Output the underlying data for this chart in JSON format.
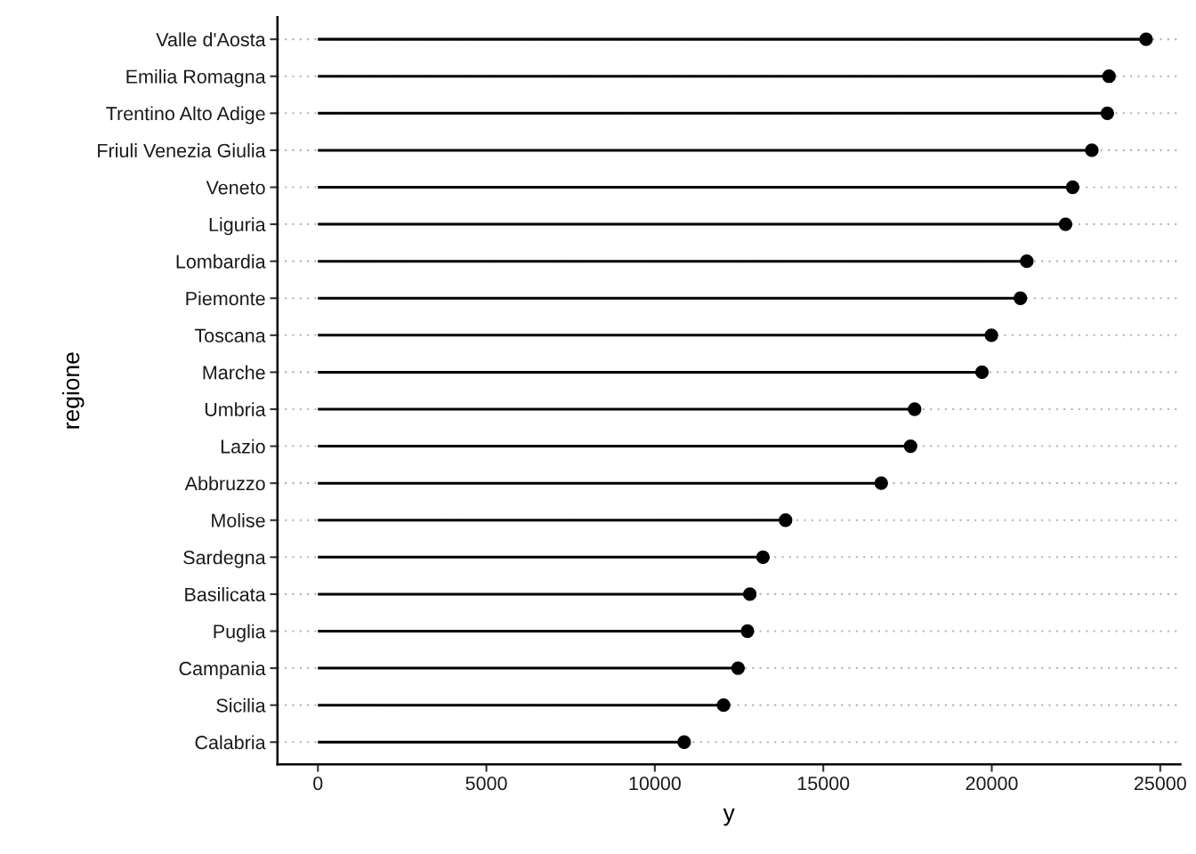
{
  "chart_data": {
    "type": "lollipop",
    "orientation": "horizontal",
    "xlabel": "y",
    "ylabel": "regione",
    "categories": [
      "Valle d'Aosta",
      "Emilia Romagna",
      "Trentino Alto Adige",
      "Friuli Venezia Giulia",
      "Veneto",
      "Liguria",
      "Lombardia",
      "Piemonte",
      "Toscana",
      "Marche",
      "Umbria",
      "Lazio",
      "Abbruzzo",
      "Molise",
      "Sardegna",
      "Basilicata",
      "Puglia",
      "Campania",
      "Sicilia",
      "Calabria"
    ],
    "values": [
      24580,
      23480,
      23430,
      22970,
      22400,
      22190,
      21040,
      20850,
      19990,
      19710,
      17710,
      17590,
      16720,
      13880,
      13210,
      12820,
      12750,
      12470,
      12040,
      10870
    ],
    "color": "#000000",
    "marker": "circle",
    "xlim": [
      -1200,
      25600
    ],
    "xticks": [
      0,
      5000,
      10000,
      15000,
      20000,
      25000
    ],
    "grid": "y"
  }
}
